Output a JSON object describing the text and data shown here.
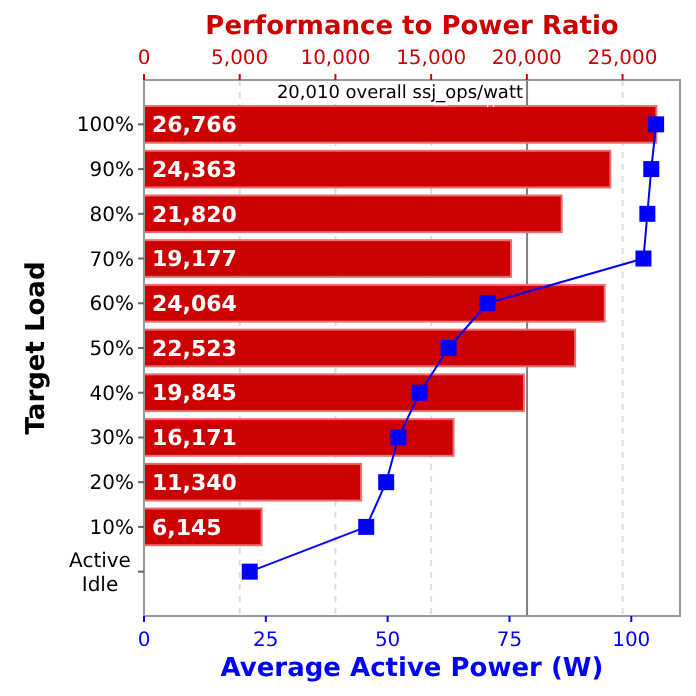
{
  "chart_data": {
    "type": "bar",
    "orientation": "horizontal",
    "categories": [
      "100%",
      "90%",
      "80%",
      "70%",
      "60%",
      "50%",
      "40%",
      "30%",
      "20%",
      "10%",
      "Active Idle"
    ],
    "x2label": "Performance to Power Ratio",
    "xlabel": "Average Active Power (W)",
    "ylabel": "Target Load",
    "xlim": [
      0,
      110
    ],
    "xticks": [
      0,
      25,
      50,
      75,
      100
    ],
    "x2lim": [
      0,
      28000
    ],
    "x2ticks": [
      {
        "value": 0,
        "label": "0"
      },
      {
        "value": 5000,
        "label": "5,000"
      },
      {
        "value": 10000,
        "label": "10,000"
      },
      {
        "value": 15000,
        "label": "15,000"
      },
      {
        "value": 20000,
        "label": "20,000"
      },
      {
        "value": 25000,
        "label": "25,000"
      }
    ],
    "grid": "x",
    "series": [
      {
        "axis": "x2",
        "color": "#cc0000",
        "values": [
          26766,
          24363,
          21820,
          19177,
          24064,
          22523,
          19845,
          16171,
          11340,
          6145,
          null
        ],
        "value_labels": [
          "26,766",
          "24,363",
          "21,820",
          "19,177",
          "24,064",
          "22,523",
          "19,845",
          "16,171",
          "11,340",
          "6,145",
          null
        ]
      },
      {
        "type": "line",
        "color": "#0000ff",
        "marker": "square",
        "values": [
          105.1,
          104.1,
          103.3,
          102.5,
          70.5,
          62.5,
          56.6,
          52.2,
          49.7,
          45.6,
          21.7
        ]
      }
    ],
    "ref_lines": [
      {
        "axis": "x2",
        "value": 20010,
        "label": "20,010 overall ssj_ops/watt",
        "color": "#808080"
      }
    ]
  }
}
